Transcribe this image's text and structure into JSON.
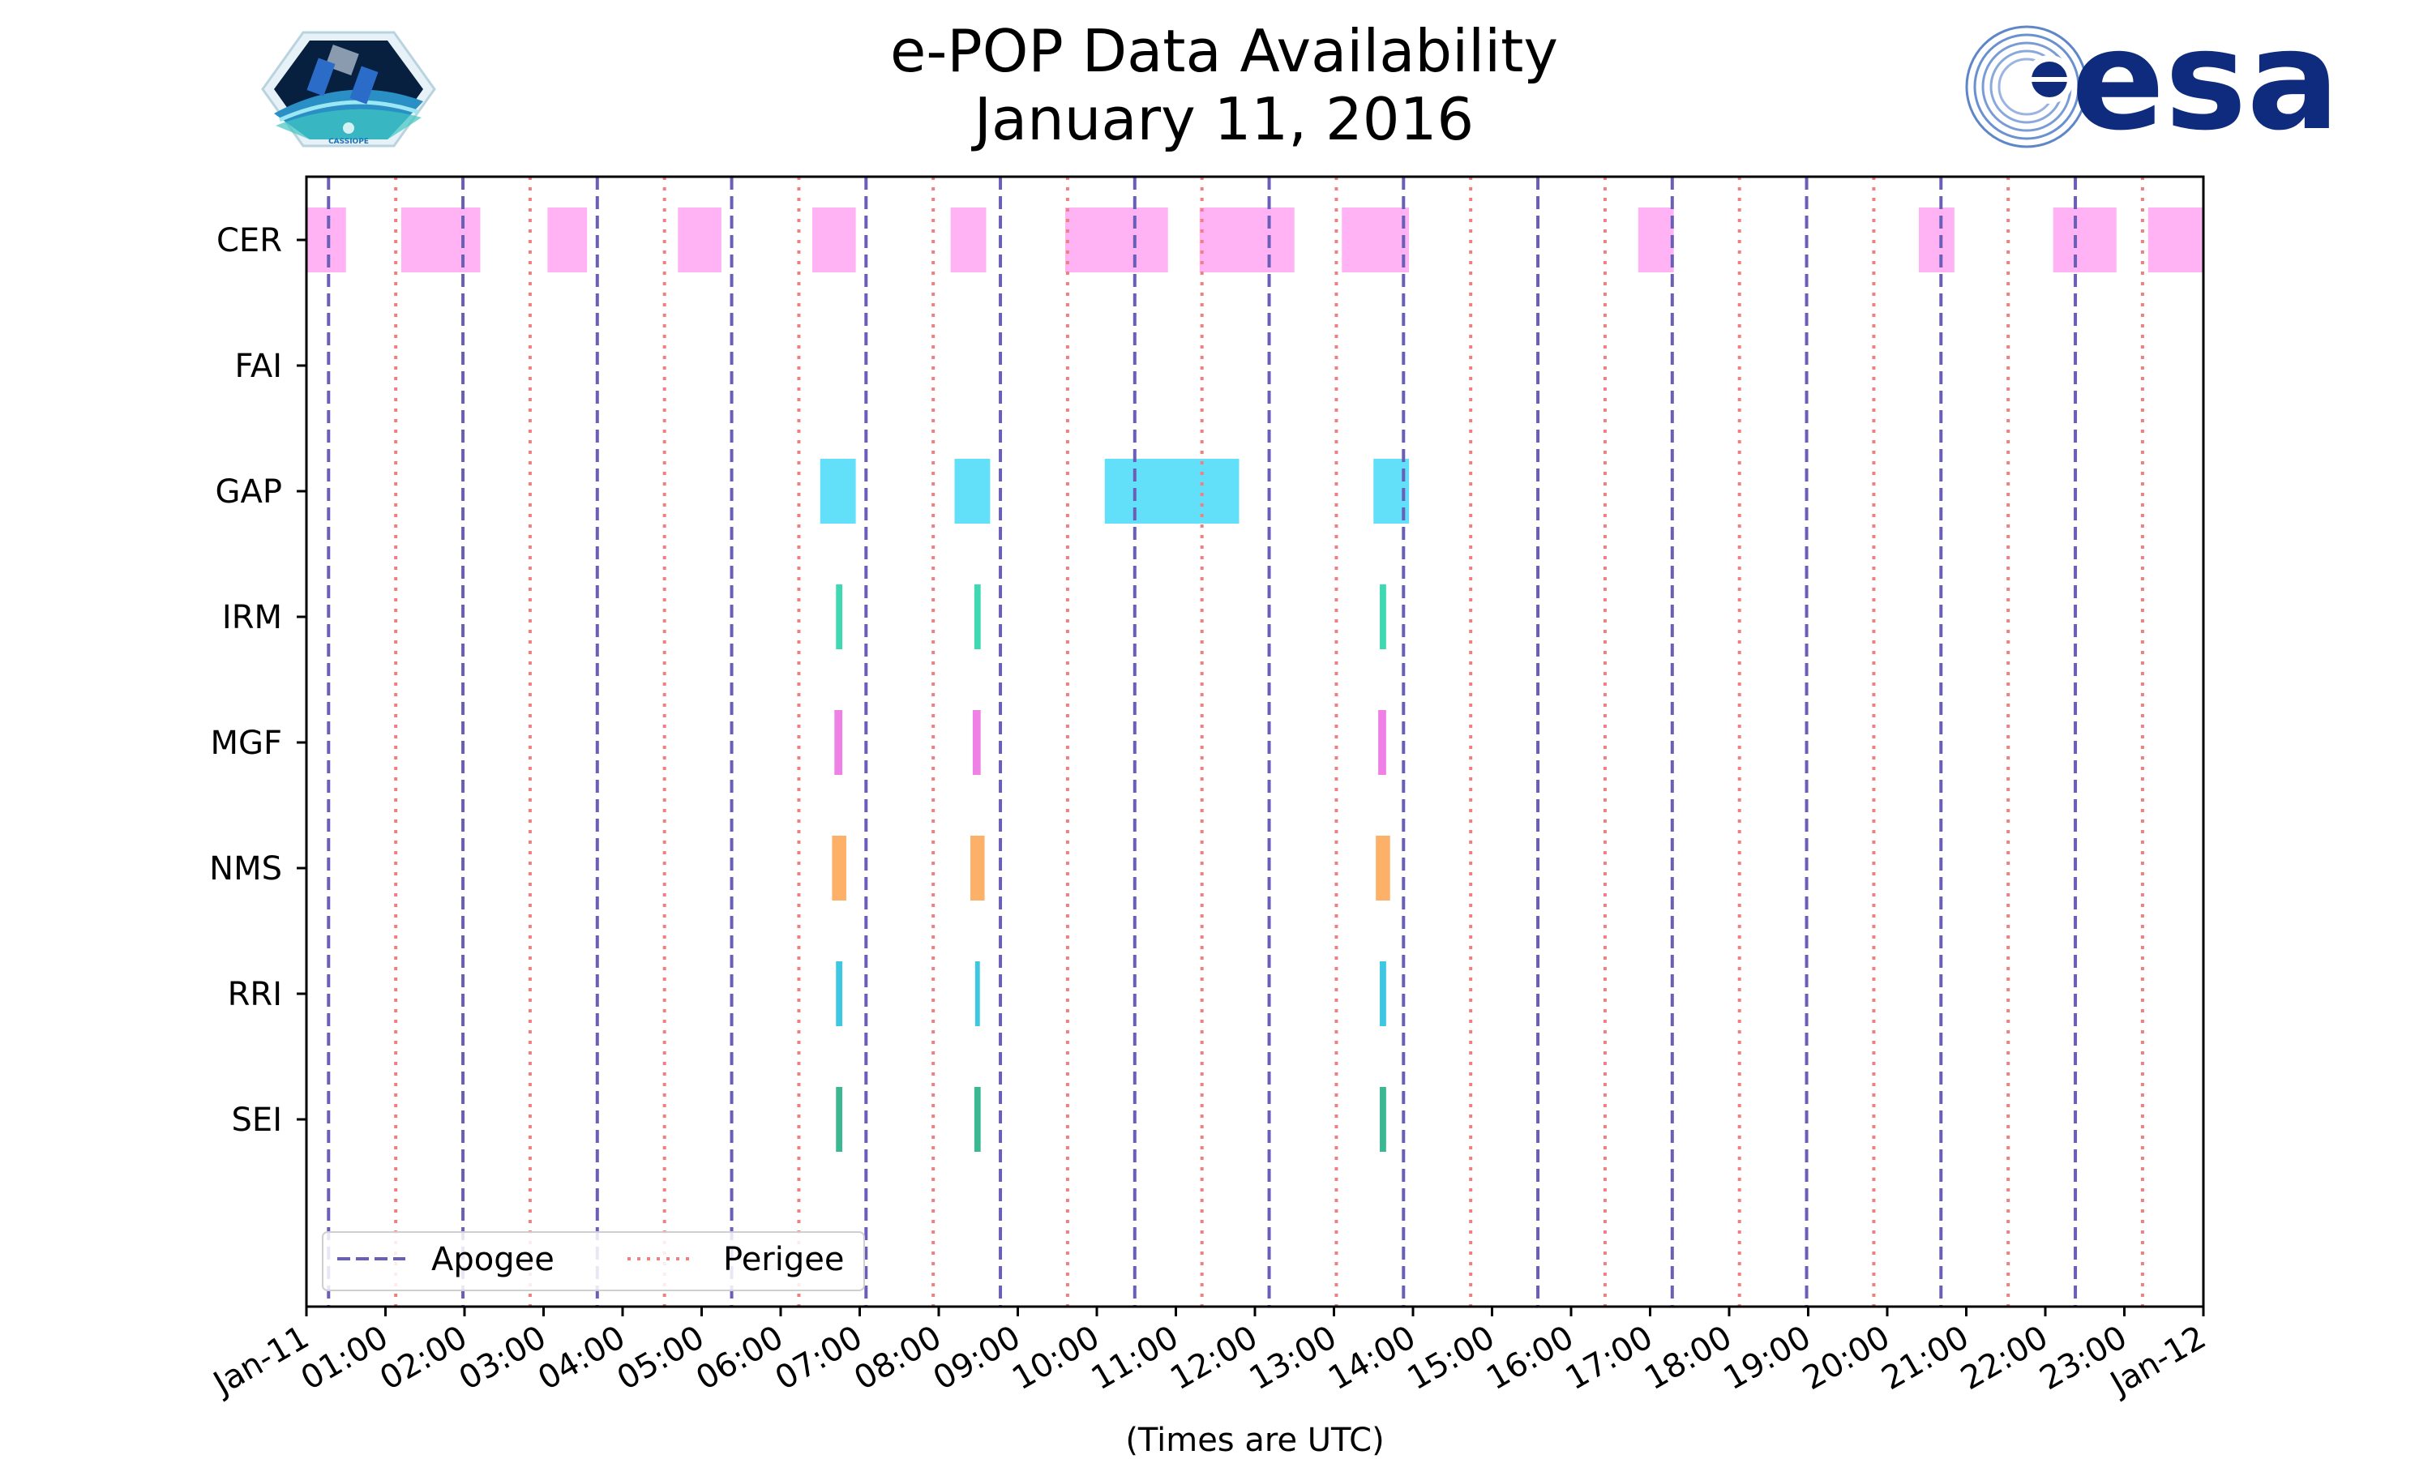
{
  "chart_data": {
    "type": "timeline",
    "title": [
      "e-POP Data Availability",
      "January 11, 2016"
    ],
    "xlabel": "(Times are UTC)",
    "x_range_hours": [
      0,
      24
    ],
    "x_tick_labels": [
      "Jan-11",
      "01:00",
      "02:00",
      "03:00",
      "04:00",
      "05:00",
      "06:00",
      "07:00",
      "08:00",
      "09:00",
      "10:00",
      "11:00",
      "12:00",
      "13:00",
      "14:00",
      "15:00",
      "16:00",
      "17:00",
      "18:00",
      "19:00",
      "20:00",
      "21:00",
      "22:00",
      "23:00",
      "Jan-12"
    ],
    "instruments": [
      {
        "name": "CER",
        "color": "#ffb3f5",
        "intervals": [
          [
            0.0,
            0.5
          ],
          [
            1.2,
            2.2
          ],
          [
            3.05,
            3.55
          ],
          [
            4.7,
            5.25
          ],
          [
            6.4,
            6.95
          ],
          [
            8.15,
            8.6
          ],
          [
            9.6,
            10.9
          ],
          [
            11.3,
            12.5
          ],
          [
            13.1,
            13.95
          ],
          [
            16.85,
            17.3
          ],
          [
            20.4,
            20.85
          ],
          [
            22.1,
            22.9
          ],
          [
            23.3,
            24.0
          ]
        ]
      },
      {
        "name": "FAI",
        "color": "#ffffff",
        "intervals": []
      },
      {
        "name": "GAP",
        "color": "#62e0fa",
        "intervals": [
          [
            6.5,
            6.95
          ],
          [
            8.2,
            8.65
          ],
          [
            10.1,
            11.8
          ],
          [
            13.5,
            13.95
          ]
        ]
      },
      {
        "name": "IRM",
        "color": "#3ed9b0",
        "intervals": [
          [
            6.7,
            6.78
          ],
          [
            8.45,
            8.53
          ],
          [
            13.58,
            13.66
          ]
        ]
      },
      {
        "name": "MGF",
        "color": "#ef80e6",
        "intervals": [
          [
            6.68,
            6.78
          ],
          [
            8.43,
            8.53
          ],
          [
            13.56,
            13.66
          ]
        ]
      },
      {
        "name": "NMS",
        "color": "#fdb068",
        "intervals": [
          [
            6.65,
            6.83
          ],
          [
            8.4,
            8.58
          ],
          [
            13.53,
            13.71
          ]
        ]
      },
      {
        "name": "RRI",
        "color": "#3dc7e2",
        "intervals": [
          [
            6.7,
            6.78
          ],
          [
            8.46,
            8.52
          ],
          [
            13.58,
            13.66
          ]
        ]
      },
      {
        "name": "SEI",
        "color": "#3bb892",
        "intervals": [
          [
            6.7,
            6.78
          ],
          [
            8.45,
            8.53
          ],
          [
            13.58,
            13.66
          ]
        ]
      }
    ],
    "apogee_times_hours": [
      0.28,
      1.98,
      3.68,
      5.38,
      7.08,
      8.78,
      10.48,
      12.18,
      13.88,
      15.58,
      17.28,
      18.98,
      20.68,
      22.38
    ],
    "perigee_times_hours": [
      1.13,
      2.83,
      4.53,
      6.23,
      7.93,
      9.63,
      11.33,
      13.03,
      14.73,
      16.43,
      18.13,
      19.83,
      21.53,
      23.23
    ],
    "apogee_color": "#6a5fb8",
    "perigee_color": "#f08080",
    "legend": {
      "apogee_label": "Apogee",
      "perigee_label": "Perigee",
      "position": "lower-left"
    }
  },
  "logos": {
    "left_caption": "CASSIOPE",
    "right_text": "esa",
    "right_color": "#0f2b7e"
  }
}
